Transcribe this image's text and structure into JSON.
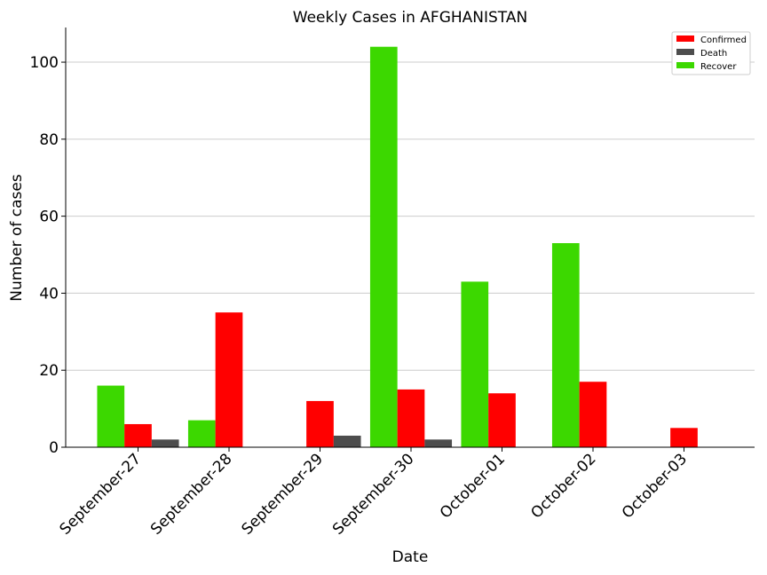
{
  "chart_data": {
    "type": "bar",
    "title": "Weekly Cases in AFGHANISTAN",
    "xlabel": "Date",
    "ylabel": "Number of cases",
    "categories": [
      "September-27",
      "September-28",
      "September-29",
      "September-30",
      "October-01",
      "October-02",
      "October-03"
    ],
    "series": [
      {
        "name": "Confirmed",
        "color": "#ff0000",
        "values": [
          6,
          35,
          12,
          15,
          14,
          17,
          5
        ]
      },
      {
        "name": "Death",
        "color": "#4d4d4d",
        "values": [
          2,
          0,
          3,
          2,
          0,
          0,
          0
        ]
      },
      {
        "name": "Recover",
        "color": "#3cd800",
        "values": [
          16,
          7,
          0,
          104,
          43,
          53,
          0
        ]
      }
    ],
    "bar_order": [
      "Recover",
      "Confirmed",
      "Death"
    ],
    "ylim": [
      0,
      109
    ],
    "yticks": [
      0,
      20,
      40,
      60,
      80,
      100
    ],
    "grid": "horizontal",
    "legend_position": "top-right"
  }
}
